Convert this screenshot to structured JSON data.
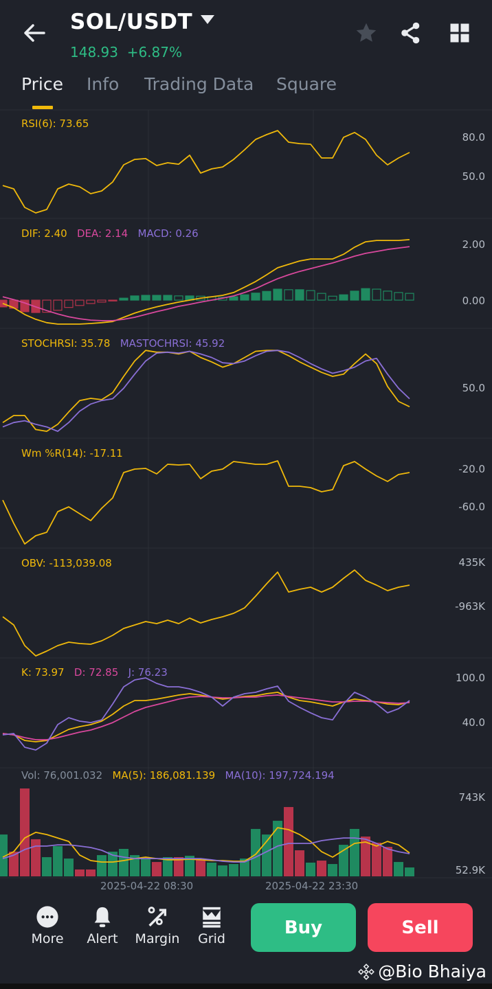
{
  "header": {
    "pair": "SOL/USDT",
    "price": "148.93",
    "change": "+6.87%"
  },
  "tabs": [
    {
      "label": "Price",
      "active": true
    },
    {
      "label": "Info"
    },
    {
      "label": "Trading Data"
    },
    {
      "label": "Square"
    }
  ],
  "colors": {
    "bg": "#1f222a",
    "up": "#2ebd85",
    "down": "#f6465d",
    "yellow": "#f0b90b",
    "pink": "#d9489d",
    "purple": "#8a6fd6",
    "bar_up": "#1f8a60",
    "bar_down": "#b8344b"
  },
  "time_labels": [
    "2025-04-22 08:30",
    "2025-04-22 23:30"
  ],
  "panels": {
    "rsi": {
      "labels": [
        "RSI(6): 73.65"
      ],
      "ticks": [
        "80.0",
        "50.0"
      ]
    },
    "macd": {
      "labels": [
        "DIF: 2.40",
        "DEA: 2.14",
        "MACD: 0.26"
      ],
      "ticks": [
        "2.00",
        "0.00"
      ]
    },
    "stoch": {
      "labels": [
        "STOCHRSI: 35.78",
        "MASTOCHRSI: 45.92"
      ],
      "ticks": [
        "50.0"
      ]
    },
    "wr": {
      "labels": [
        "Wm %R(14): -17.11"
      ],
      "ticks": [
        "-20.0",
        "-60.0"
      ]
    },
    "obv": {
      "labels": [
        "OBV: -113,039.08"
      ],
      "ticks": [
        "435K",
        "-963K"
      ]
    },
    "kdj": {
      "labels": [
        "K: 73.97",
        "D: 72.85",
        "J: 76.23"
      ],
      "ticks": [
        "100.0",
        "40.0"
      ]
    },
    "vol": {
      "labels": [
        "Vol: 76,001.032",
        "MA(5): 186,081.139",
        "MA(10): 197,724.194"
      ],
      "ticks": [
        "743K",
        "52.9K"
      ]
    }
  },
  "chart_data": [
    {
      "type": "line",
      "name": "RSI(6)",
      "ylim": [
        20,
        90
      ],
      "series": [
        {
          "name": "RSI(6)",
          "values": [
            42.6,
            40,
            25.8,
            21.6,
            24.2,
            40,
            43.7,
            41.6,
            36.3,
            38.4,
            45.3,
            58.4,
            62.6,
            63.2,
            57.9,
            60,
            58.9,
            65.8,
            52.1,
            55.3,
            56.8,
            62.6,
            70,
            77.9,
            81.6,
            84.7,
            75.8,
            74.7,
            74.2,
            63.7,
            63.7,
            79.5,
            83.2,
            77.9,
            65.8,
            58.4,
            63.7,
            67.9
          ]
        }
      ]
    },
    {
      "type": "line+bar",
      "name": "MACD",
      "series": [
        {
          "name": "DIF",
          "values": [
            -0.12,
            -0.27,
            -0.51,
            -0.68,
            -0.8,
            -0.85,
            -0.85,
            -0.85,
            -0.83,
            -0.8,
            -0.76,
            -0.61,
            -0.46,
            -0.34,
            -0.24,
            -0.15,
            -0.07,
            0,
            0.07,
            0.12,
            0.17,
            0.27,
            0.46,
            0.66,
            0.9,
            1.15,
            1.27,
            1.39,
            1.46,
            1.46,
            1.46,
            1.63,
            1.88,
            2.07,
            2.12,
            2.12,
            2.12,
            2.15
          ]
        },
        {
          "name": "DEA",
          "values": [
            0.12,
            0.02,
            -0.1,
            -0.24,
            -0.37,
            -0.49,
            -0.59,
            -0.66,
            -0.71,
            -0.73,
            -0.73,
            -0.68,
            -0.61,
            -0.51,
            -0.41,
            -0.32,
            -0.22,
            -0.15,
            -0.07,
            0,
            0.07,
            0.15,
            0.27,
            0.41,
            0.59,
            0.76,
            0.9,
            1.02,
            1.12,
            1.22,
            1.32,
            1.44,
            1.56,
            1.66,
            1.73,
            1.8,
            1.85,
            1.9
          ]
        },
        {
          "name": "MACD",
          "values": [
            -0.24,
            -0.29,
            -0.41,
            -0.44,
            -0.43,
            -0.36,
            -0.26,
            -0.19,
            -0.12,
            -0.07,
            -0.03,
            0.07,
            0.15,
            0.17,
            0.17,
            0.17,
            0.15,
            0.15,
            0.14,
            0.12,
            0.1,
            0.12,
            0.19,
            0.25,
            0.31,
            0.39,
            0.37,
            0.37,
            0.34,
            0.24,
            0.14,
            0.19,
            0.32,
            0.41,
            0.39,
            0.32,
            0.27,
            0.24
          ]
        }
      ]
    },
    {
      "type": "line",
      "name": "STOCHRSI",
      "series": [
        {
          "name": "STOCHRSI",
          "values": [
            10,
            18,
            18,
            2,
            0,
            8,
            22,
            35,
            37.5,
            36,
            44,
            62.5,
            80,
            92,
            90,
            90,
            88,
            91,
            84,
            79,
            73,
            77,
            84,
            91,
            92,
            92,
            86,
            79,
            73,
            67,
            62.5,
            65,
            77,
            88,
            77,
            51,
            34,
            28
          ]
        },
        {
          "name": "MASTOCHRSI",
          "values": [
            5,
            10,
            12,
            8,
            5,
            0,
            10,
            23,
            31,
            35,
            37,
            49,
            65,
            80,
            89,
            90,
            89,
            91,
            88,
            84,
            78,
            77,
            80,
            86,
            91,
            92,
            90,
            84,
            77,
            71,
            66,
            69,
            73,
            80,
            83,
            65,
            49,
            37
          ]
        }
      ]
    },
    {
      "type": "line",
      "name": "Wm %R(14)",
      "series": [
        {
          "name": "Wm %R(14)",
          "values": [
            -53.5,
            -78.2,
            -100,
            -91.3,
            -87.6,
            -65.8,
            -60.7,
            -68,
            -75.3,
            -62.2,
            -51.3,
            -24.4,
            -20.7,
            -20,
            -25.8,
            -15.6,
            -16.4,
            -15.6,
            -30.9,
            -22.9,
            -20.7,
            -12.7,
            -14.2,
            -15.6,
            -15.6,
            -12,
            -38.9,
            -38.9,
            -40.4,
            -44.7,
            -42.5,
            -17.1,
            -12.7,
            -20.7,
            -28,
            -33.8,
            -26.5,
            -24.4
          ]
        }
      ]
    },
    {
      "type": "line",
      "name": "OBV",
      "unit": "K",
      "series": [
        {
          "name": "OBV",
          "values": [
            -1312,
            -1574,
            -2229,
            -2557,
            -2404,
            -2229,
            -2120,
            -2164,
            -2186,
            -2077,
            -1902,
            -1683,
            -1574,
            -1465,
            -1531,
            -1421,
            -1531,
            -1356,
            -1509,
            -1400,
            -1312,
            -1203,
            -1028,
            -657,
            -264,
            107,
            -526,
            -439,
            -373,
            -526,
            -373,
            -89,
            173,
            -155,
            -308,
            -482,
            -373,
            -308
          ]
        }
      ]
    },
    {
      "type": "line",
      "name": "KDJ",
      "series": [
        {
          "name": "K",
          "values": [
            24.3,
            22.4,
            15,
            13.2,
            15,
            22.4,
            29.8,
            33.5,
            36.3,
            40.9,
            50.1,
            61.2,
            68.6,
            68.6,
            70.5,
            73.2,
            76,
            77.8,
            76,
            73.2,
            70.5,
            72.3,
            74.1,
            75.1,
            77.8,
            79.7,
            73.2,
            68.6,
            66.8,
            64,
            61.2,
            66.8,
            70.5,
            68.6,
            66.8,
            64,
            63.1,
            66.8
          ]
        },
        {
          "name": "D",
          "values": [
            24.3,
            22.4,
            18.7,
            16,
            16,
            18.7,
            22.4,
            26.1,
            28.9,
            33.5,
            39,
            46.4,
            53.8,
            59.4,
            63.1,
            66.8,
            70.5,
            73.2,
            74.1,
            73.2,
            72.3,
            72.3,
            73.2,
            73.2,
            75.1,
            76,
            74.1,
            72.3,
            70.5,
            68.6,
            66.8,
            66.8,
            67.7,
            67.7,
            66.8,
            65.8,
            64.9,
            65.8
          ]
        },
        {
          "name": "J",
          "values": [
            22.4,
            24.3,
            5.8,
            2.1,
            11.4,
            36.3,
            45.5,
            40.9,
            39,
            42.7,
            64,
            87.1,
            96.3,
            99.1,
            91.7,
            87.1,
            87.1,
            84.3,
            79.7,
            73.2,
            61.2,
            73.2,
            77.8,
            79.7,
            84.3,
            88,
            67.7,
            59.4,
            52.1,
            45.5,
            42.7,
            64,
            79.7,
            73.2,
            64,
            52.1,
            57.6,
            68.6
          ]
        }
      ]
    },
    {
      "type": "bar+line",
      "name": "Vol",
      "unit": "K",
      "series": [
        {
          "name": "Vol",
          "values": [
            390,
            230,
            819,
            346,
            179,
            282,
            166,
            64,
            64,
            198,
            230,
            256,
            198,
            166,
            134,
            179,
            179,
            192,
            154,
            128,
            102,
            115,
            166,
            442,
            390,
            518,
            646,
            243,
            128,
            147,
            115,
            294,
            442,
            371,
            314,
            275,
            134,
            83
          ],
          "direction": [
            "up",
            "down",
            "down",
            "down",
            "up",
            "up",
            "up",
            "down",
            "down",
            "up",
            "up",
            "up",
            "up",
            "up",
            "down",
            "up",
            "down",
            "up",
            "down",
            "up",
            "up",
            "up",
            "up",
            "up",
            "up",
            "up",
            "down",
            "down",
            "up",
            "down",
            "up",
            "up",
            "up",
            "down",
            "down",
            "down",
            "up",
            "up"
          ]
        },
        {
          "name": "MA(5)",
          "values": [
            179,
            230,
            358,
            410,
            390,
            358,
            326,
            198,
            147,
            134,
            134,
            147,
            166,
            179,
            166,
            154,
            154,
            160,
            154,
            147,
            147,
            141,
            141,
            205,
            326,
            454,
            435,
            390,
            326,
            230,
            179,
            243,
            307,
            320,
            282,
            326,
            294,
            218
          ]
        },
        {
          "name": "MA(10)",
          "values": [
            166,
            198,
            250,
            282,
            282,
            294,
            294,
            282,
            269,
            243,
            198,
            179,
            166,
            166,
            166,
            166,
            166,
            166,
            166,
            154,
            141,
            134,
            134,
            179,
            230,
            282,
            307,
            307,
            307,
            333,
            346,
            358,
            358,
            346,
            307,
            256,
            230,
            211
          ]
        }
      ]
    }
  ],
  "bottom": {
    "buttons": [
      {
        "label": "More",
        "icon": "more-icon"
      },
      {
        "label": "Alert",
        "icon": "bell-icon"
      },
      {
        "label": "Margin",
        "icon": "percent-icon"
      },
      {
        "label": "Grid",
        "icon": "grid-bot-icon"
      }
    ],
    "buy": "Buy",
    "sell": "Sell"
  },
  "watermark": "@Bio Bhaiya"
}
